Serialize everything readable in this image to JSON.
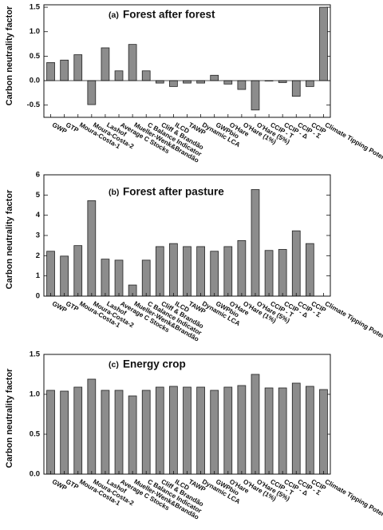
{
  "chart_data": [
    {
      "type": "bar",
      "panel_label": "(a)",
      "title": "Forest after forest",
      "ylabel": "Carbon neutrality factor",
      "ylim": [
        -0.75,
        1.55
      ],
      "yticks": [
        "-0.5",
        "0.0",
        "0.5",
        "1.0",
        "1.5"
      ],
      "ytick_values": [
        -0.5,
        0.0,
        0.5,
        1.0,
        1.5
      ],
      "categories": [
        "GWP",
        "GTP",
        "Moura-Costa-1",
        "Moura-Costa-2",
        "Lashof",
        "Average C Stocks",
        "Mueller-Wenk&Brandão",
        "C Balance Indicator",
        "Cliff & Brandão",
        "ILCD",
        "TAWP",
        "Dynamic LCA",
        "GWPbio",
        "O'Hare",
        "O'Hare (1%)",
        "O'Hare (5%)",
        "CCIP - T",
        "CCIP - Δ",
        "CCIP - Σ",
        "CCIP",
        "Climate Tipping Potential"
      ],
      "values": [
        0.37,
        0.42,
        0.53,
        -0.49,
        0.67,
        0.2,
        0.74,
        0.2,
        -0.05,
        -0.12,
        -0.05,
        -0.05,
        0.11,
        -0.07,
        -0.18,
        -0.6,
        0.0,
        -0.04,
        -0.32,
        -0.12,
        1.5
      ]
    },
    {
      "type": "bar",
      "panel_label": "(b)",
      "title": "Forest after pasture",
      "ylabel": "Carbon neutrality factor",
      "ylim": [
        0,
        6
      ],
      "yticks": [
        "0",
        "1",
        "2",
        "3",
        "4",
        "5",
        "6"
      ],
      "ytick_values": [
        0,
        1,
        2,
        3,
        4,
        5,
        6
      ],
      "categories": [
        "GWP",
        "GTP",
        "Moura-Costa-1",
        "Moura-Costa-2",
        "Lashof",
        "Average C Stocks",
        "Mueller-Wenk&Brandão",
        "C Balance Indicator",
        "Cliff & Brandão",
        "ILCD",
        "TAWP",
        "Dynamic LCA",
        "GWPbio",
        "O'Hare",
        "O'Hare (1%)",
        "O'Hare (5%)",
        "CCIP - T",
        "CCIP - Δ",
        "CCIP - Σ",
        "CCIP",
        "Climate Tipping Potential"
      ],
      "values": [
        2.22,
        1.98,
        2.5,
        4.72,
        1.83,
        1.78,
        0.55,
        1.78,
        2.45,
        2.6,
        2.45,
        2.45,
        2.22,
        2.45,
        2.75,
        5.27,
        2.26,
        2.31,
        3.23,
        2.6,
        null
      ]
    },
    {
      "type": "bar",
      "panel_label": "(c)",
      "title": "Energy crop",
      "ylabel": "Carbon neutrality factor",
      "ylim": [
        0,
        1.5
      ],
      "yticks": [
        "0.0",
        "0.5",
        "1.0",
        "1.5"
      ],
      "ytick_values": [
        0.0,
        0.5,
        1.0,
        1.5
      ],
      "categories": [
        "GWP",
        "GTP",
        "Moura-Costa-1",
        "Moura-Costa-2",
        "Lashof",
        "Average C Stocks",
        "Mueller-Wenk&Brandão",
        "C Balance Indicator",
        "Cliff & Brandão",
        "ILCD",
        "TAWP",
        "Dynamic LCA",
        "GWPbio",
        "O'Hare",
        "O'Hare (1%)",
        "O'Hare (5%)",
        "CCIP - T",
        "CCIP - Δ",
        "CCIP - Σ",
        "CCIP",
        "Climate Tipping Potential"
      ],
      "values": [
        1.05,
        1.04,
        1.09,
        1.19,
        1.05,
        1.05,
        0.98,
        1.05,
        1.09,
        1.1,
        1.09,
        1.09,
        1.05,
        1.09,
        1.11,
        1.25,
        1.08,
        1.08,
        1.14,
        1.1,
        1.06
      ]
    }
  ]
}
